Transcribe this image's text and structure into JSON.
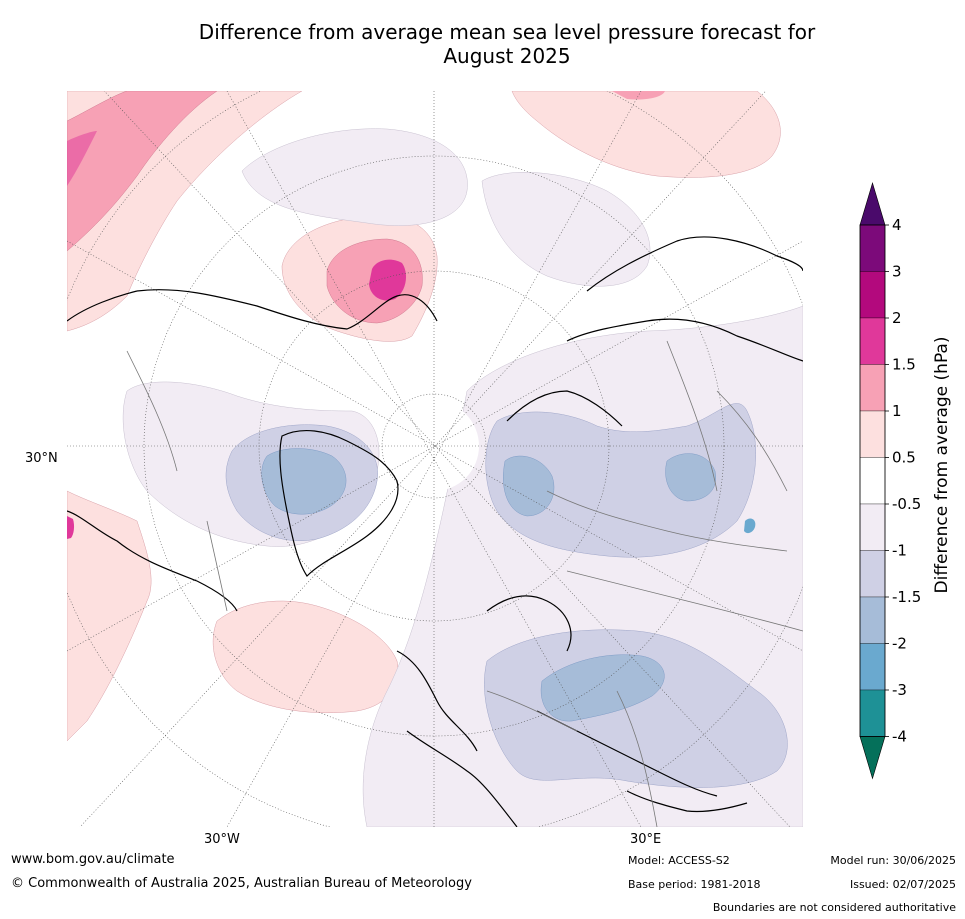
{
  "title_line1": "Difference from average mean sea level pressure forecast for",
  "title_line2": "August 2025",
  "map_labels": {
    "lat_30n": "30°N",
    "lon_30w": "30°W",
    "lon_30e": "30°E"
  },
  "colorbar": {
    "label": "Difference from average (hPa)",
    "ticks": [
      "4",
      "3",
      "2",
      "1.5",
      "1",
      "0.5",
      "-0.5",
      "-1",
      "-1.5",
      "-2",
      "-3",
      "-4"
    ],
    "colors_top_to_bottom": [
      "#4a0a6b",
      "#7c0a7a",
      "#b3097d",
      "#e0389a",
      "#f7a1b5",
      "#fde0df",
      "#ffffff",
      "#f2ecf4",
      "#cfd0e5",
      "#a6bcd8",
      "#6aa9cf",
      "#1e9196",
      "#05705a"
    ]
  },
  "footer": {
    "website": "www.bom.gov.au/climate",
    "copyright": "© Commonwealth of Australia 2025, Australian Bureau of Meteorology",
    "model": "Model: ACCESS-S2",
    "base_period": "Base period: 1981-2018",
    "model_run": "Model run: 30/06/2025",
    "issued": "Issued: 02/07/2025",
    "disclaimer": "Boundaries are not considered authoritative"
  }
}
